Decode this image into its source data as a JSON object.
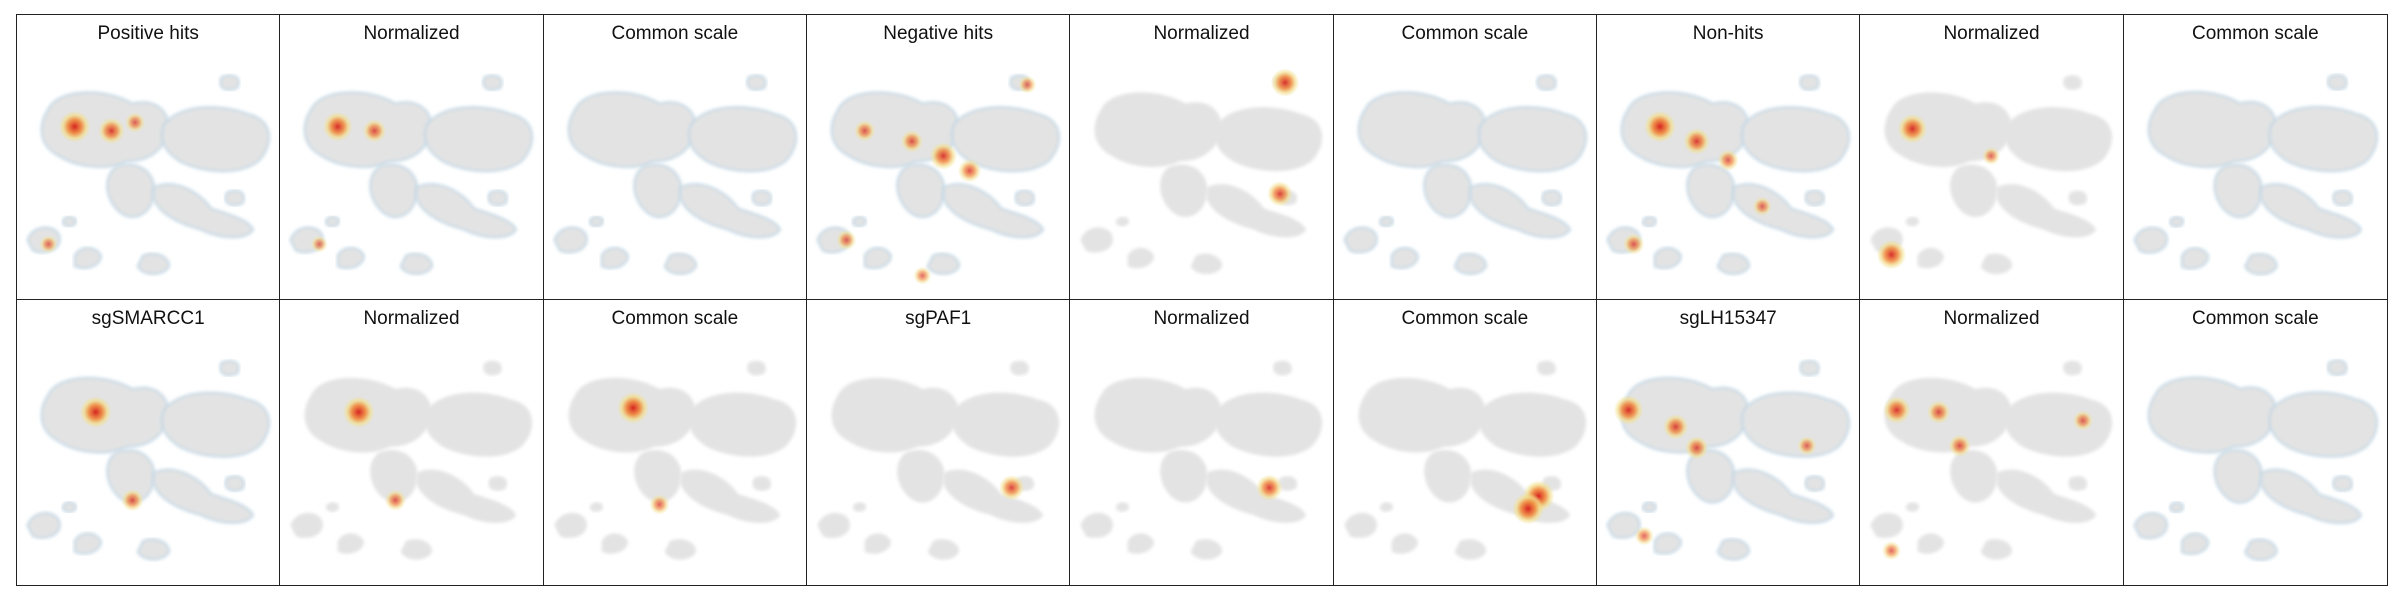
{
  "panels": [
    {
      "title": "Positive hits",
      "hot": [
        [
          0.22,
          0.26,
          1.0
        ],
        [
          0.36,
          0.28,
          0.75
        ],
        [
          0.45,
          0.24,
          0.45
        ],
        [
          0.12,
          0.82,
          0.35
        ]
      ],
      "cool": true
    },
    {
      "title": "Normalized",
      "hot": [
        [
          0.22,
          0.26,
          0.9
        ],
        [
          0.36,
          0.28,
          0.6
        ],
        [
          0.15,
          0.82,
          0.3
        ]
      ],
      "cool": true
    },
    {
      "title": "Common scale",
      "hot": [],
      "cool": true
    },
    {
      "title": "Negative hits",
      "hot": [
        [
          0.52,
          0.4,
          0.8
        ],
        [
          0.4,
          0.33,
          0.55
        ],
        [
          0.22,
          0.28,
          0.5
        ],
        [
          0.62,
          0.47,
          0.6
        ],
        [
          0.15,
          0.8,
          0.45
        ],
        [
          0.84,
          0.06,
          0.35
        ],
        [
          0.44,
          0.97,
          0.35
        ]
      ],
      "cool": true
    },
    {
      "title": "Normalized",
      "hot": [
        [
          0.82,
          0.05,
          0.85
        ],
        [
          0.8,
          0.58,
          0.7
        ]
      ],
      "cool": false
    },
    {
      "title": "Common scale",
      "hot": [],
      "cool": true
    },
    {
      "title": "Non-hits",
      "hot": [
        [
          0.24,
          0.26,
          1.0
        ],
        [
          0.38,
          0.33,
          0.75
        ],
        [
          0.5,
          0.42,
          0.5
        ],
        [
          0.14,
          0.82,
          0.5
        ],
        [
          0.63,
          0.64,
          0.4
        ]
      ],
      "cool": true
    },
    {
      "title": "Normalized",
      "hot": [
        [
          0.2,
          0.27,
          0.9
        ],
        [
          0.12,
          0.87,
          0.9
        ],
        [
          0.5,
          0.4,
          0.35
        ]
      ],
      "cool": false
    },
    {
      "title": "Common scale",
      "hot": [],
      "cool": true
    },
    {
      "title": "sgSMARCC1",
      "hot": [
        [
          0.3,
          0.26,
          1.0
        ],
        [
          0.44,
          0.68,
          0.55
        ]
      ],
      "cool": true
    },
    {
      "title": "Normalized",
      "hot": [
        [
          0.3,
          0.26,
          1.0
        ],
        [
          0.44,
          0.68,
          0.5
        ]
      ],
      "cool": false
    },
    {
      "title": "Common scale",
      "hot": [
        [
          0.34,
          0.24,
          1.0
        ],
        [
          0.44,
          0.7,
          0.45
        ]
      ],
      "cool": false
    },
    {
      "title": "sgPAF1",
      "hot": [
        [
          0.78,
          0.62,
          0.7
        ]
      ],
      "cool": false
    },
    {
      "title": "Normalized",
      "hot": [
        [
          0.76,
          0.62,
          0.75
        ]
      ],
      "cool": false
    },
    {
      "title": "Common scale",
      "hot": [
        [
          0.78,
          0.66,
          1.0
        ],
        [
          0.74,
          0.72,
          1.0
        ]
      ],
      "cool": false
    },
    {
      "title": "sgLH15347",
      "hot": [
        [
          0.12,
          0.25,
          0.9
        ],
        [
          0.3,
          0.33,
          0.7
        ],
        [
          0.38,
          0.43,
          0.6
        ],
        [
          0.18,
          0.85,
          0.4
        ],
        [
          0.8,
          0.42,
          0.4
        ]
      ],
      "cool": true
    },
    {
      "title": "Normalized",
      "hot": [
        [
          0.14,
          0.25,
          0.8
        ],
        [
          0.3,
          0.26,
          0.6
        ],
        [
          0.38,
          0.42,
          0.55
        ],
        [
          0.85,
          0.3,
          0.45
        ],
        [
          0.12,
          0.92,
          0.4
        ]
      ],
      "cool": false
    },
    {
      "title": "Common scale",
      "hot": [],
      "cool": true
    }
  ],
  "colors": {
    "base": "#e3e3e3",
    "cool": "#b9d3e3",
    "warm": "#f2df8c",
    "hot": "#d6241f"
  }
}
